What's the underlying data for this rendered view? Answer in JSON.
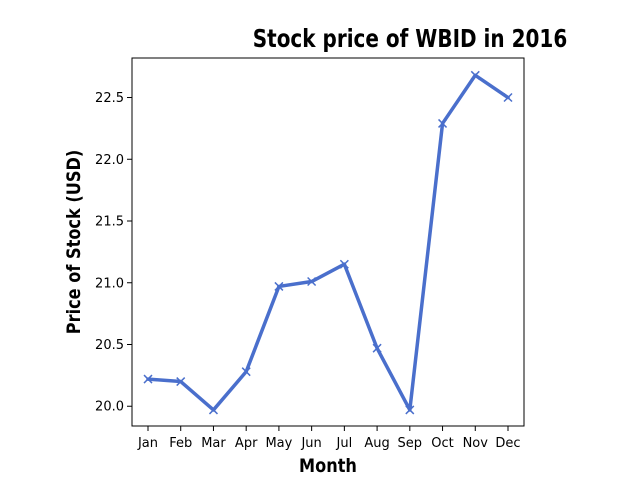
{
  "chart_data": {
    "type": "line",
    "title": "Stock price of WBID in 2016",
    "xlabel": "Month",
    "ylabel": "Price of Stock (USD)",
    "categories": [
      "Jan",
      "Feb",
      "Mar",
      "Apr",
      "May",
      "Jun",
      "Jul",
      "Aug",
      "Sep",
      "Oct",
      "Nov",
      "Dec"
    ],
    "series": [
      {
        "values": [
          20.22,
          20.2,
          19.97,
          20.28,
          20.97,
          21.01,
          21.15,
          20.47,
          19.97,
          22.29,
          22.68,
          22.5
        ],
        "color": "#4a6fcc",
        "marker": "x"
      }
    ],
    "yticks": [
      20.0,
      20.5,
      21.0,
      21.5,
      22.0,
      22.5
    ],
    "ylim": [
      19.84,
      22.82
    ],
    "grid": false,
    "legend": false
  }
}
